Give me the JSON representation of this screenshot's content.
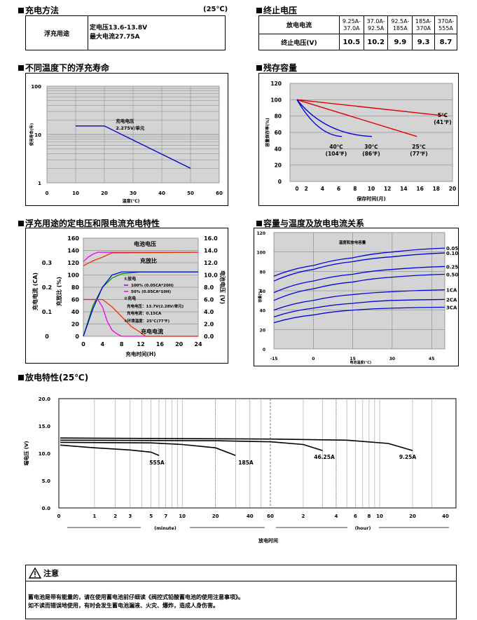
{
  "charge_method": {
    "title": "充电方法",
    "temp": "(25℃)",
    "use_label": "浮充用途",
    "line1": "定电压13.6-13.8V",
    "line2": "最大电流27.75A"
  },
  "cutoff": {
    "title": "终止电压",
    "row1_label": "放电电流",
    "row2_label": "终止电压(V)",
    "currents": [
      "9.25A-\n37.0A",
      "37.0A-\n92.5A",
      "92.5A-\n185A",
      "185A-\n370A",
      "370A-\n555A"
    ],
    "voltages": [
      "10.5",
      "10.2",
      "9.9",
      "9.3",
      "8.7"
    ]
  },
  "titles": {
    "float_life": "不同温度下的浮充寿命",
    "capacity_remaining": "残存容量",
    "charge_char": "浮充用途的定电压和限电流充电特性",
    "temp_capacity": "容量与温度及放电电流关系",
    "discharge": "放电特性(25℃)"
  },
  "notice": {
    "title": "注意",
    "line1": "蓄电池是带有能量的，请在使用蓄电池前仔细读《阀控式铅酸蓄电池的使用注意事项》。",
    "line2": "如不读而错误地使用，有时会发生蓄电池漏液、火灾、爆炸，造成人身伤害。"
  },
  "chart_data": [
    {
      "type": "line",
      "title": "",
      "xlabel": "温度(℃)",
      "ylabel": "使用寿命(年)",
      "yscale": "log",
      "xlim": [
        0,
        60
      ],
      "ylim": [
        1,
        100
      ],
      "xticks": [
        "0",
        "10",
        "20",
        "30",
        "40",
        "50",
        "60"
      ],
      "yticks": [
        "1",
        "10",
        "100"
      ],
      "annotations": [
        "充电电压",
        "2.275V/单元"
      ],
      "series": [
        {
          "x": [
            10,
            20,
            50
          ],
          "y": [
            15,
            15,
            2
          ]
        }
      ],
      "grid": true
    },
    {
      "type": "line",
      "title": "",
      "xlabel": "保存时间(月)",
      "ylabel": "容量保存率(%)",
      "xlim": [
        0,
        20
      ],
      "ylim": [
        0,
        120
      ],
      "xticks": [
        "0",
        "2",
        "4",
        "6",
        "8",
        "10",
        "12",
        "14",
        "16",
        "18",
        "20"
      ],
      "yticks": [
        "0",
        "20",
        "40",
        "60",
        "80",
        "100",
        "120"
      ],
      "series": [
        {
          "name": "5℃\n(41℉)",
          "color": "#e00000",
          "x": [
            0,
            20
          ],
          "y": [
            100,
            80
          ]
        },
        {
          "name": "25℃\n(77℉)",
          "color": "#e00000",
          "x": [
            0,
            16
          ],
          "y": [
            100,
            55
          ]
        },
        {
          "name": "30℃\n(86℉)",
          "color": "#0000dd",
          "x": [
            0,
            3,
            6,
            10
          ],
          "y": [
            100,
            80,
            66,
            55
          ]
        },
        {
          "name": "40℃\n(104℉)",
          "color": "#0000dd",
          "x": [
            0,
            2,
            4,
            6
          ],
          "y": [
            100,
            80,
            65,
            55
          ]
        }
      ],
      "grid": true
    },
    {
      "type": "line",
      "title": "",
      "xlabel": "充电时间(H)",
      "y_left_outer_label": "充电电流 (CA)",
      "y_left_inner_label": "充放比 (%)",
      "y_right_label": "电池电压 (V)",
      "xticks": [
        "0",
        "4",
        "8",
        "12",
        "16",
        "20",
        "24"
      ],
      "y_pct_ticks": [
        "0",
        "20",
        "40",
        "60",
        "80",
        "100",
        "120",
        "140",
        "160"
      ],
      "y_ca_ticks": [
        "0",
        "0.1",
        "0.2",
        "0.3"
      ],
      "y_v_ticks": [
        "0.0",
        "2.0",
        "4.0",
        "6.0",
        "8.0",
        "10.0",
        "12.0",
        "14.0",
        "16.0"
      ],
      "labels": [
        "电池电压",
        "充放比",
        "充电电流"
      ],
      "legend": {
        "discharge": "①放电",
        "d1": "100% (0.05CA*20H)",
        "d2": "50%  (0.05CA*10H)",
        "charge": "②充电",
        "c1": "充电电压：13.7V(2.28V/单元)",
        "c2": "充电电流：0.15CA",
        "env": "③环境温度：25℃(77℉)"
      },
      "series": [
        {
          "name": "电池电压 100%",
          "color": "#ee00ee",
          "x": [
            0,
            1,
            2,
            3,
            4,
            24
          ],
          "y_volt": [
            12.2,
            12.9,
            13.4,
            13.7,
            13.7,
            13.7
          ]
        },
        {
          "name": "电池电压 50%",
          "color": "#ee3300",
          "x": [
            0,
            2,
            4,
            6,
            24
          ],
          "y_volt": [
            11.5,
            12.3,
            12.9,
            13.6,
            13.7
          ]
        },
        {
          "name": "充放比 100%",
          "color": "#009900",
          "x": [
            0,
            2,
            4,
            6,
            8,
            12,
            24
          ],
          "y_pct": [
            0,
            50,
            80,
            95,
            102,
            105,
            105
          ]
        },
        {
          "name": "充放比 50%",
          "color": "#0000dd",
          "x": [
            0,
            2,
            4,
            6,
            8,
            24
          ],
          "y_pct": [
            0,
            45,
            80,
            100,
            105,
            105
          ]
        },
        {
          "name": "充电电流 100%",
          "color": "#ee00ee",
          "x": [
            0,
            3,
            4,
            5,
            6,
            7,
            8,
            24
          ],
          "y_ca": [
            0.15,
            0.15,
            0.12,
            0.06,
            0.025,
            0.01,
            0,
            0
          ]
        },
        {
          "name": "充电电流 50%",
          "color": "#ee3300",
          "x": [
            0,
            4,
            6,
            8,
            10,
            12,
            13,
            24
          ],
          "y_ca": [
            0.15,
            0.15,
            0.12,
            0.08,
            0.04,
            0.015,
            0,
            0
          ]
        }
      ]
    },
    {
      "type": "line",
      "title": "温度和放电容量",
      "xlabel": "电池温度(℃)",
      "ylabel": "容量(%)",
      "xlim": [
        -15,
        50
      ],
      "ylim": [
        0,
        120
      ],
      "xticks": [
        "-15",
        "0",
        "15",
        "30",
        "45"
      ],
      "yticks": [
        "0",
        "20",
        "40",
        "60",
        "80",
        "100",
        "120"
      ],
      "series": [
        {
          "name": "0.05CA",
          "x": [
            -15,
            0,
            15,
            30,
            50
          ],
          "y": [
            75,
            86,
            94,
            100,
            104
          ]
        },
        {
          "name": "0.10CA",
          "x": [
            -15,
            0,
            15,
            30,
            50
          ],
          "y": [
            70,
            82,
            90,
            95,
            99
          ]
        },
        {
          "name": "0.25CA",
          "x": [
            -15,
            0,
            15,
            30,
            50
          ],
          "y": [
            58,
            70,
            77,
            82,
            85
          ]
        },
        {
          "name": "0.50CA",
          "x": [
            -15,
            0,
            15,
            30,
            50
          ],
          "y": [
            50,
            62,
            69,
            74,
            77
          ]
        },
        {
          "name": "1CA",
          "x": [
            -15,
            0,
            15,
            30,
            50
          ],
          "y": [
            40,
            50,
            56,
            59,
            61
          ]
        },
        {
          "name": "2CA",
          "x": [
            -15,
            0,
            15,
            30,
            50
          ],
          "y": [
            33,
            42,
            47,
            50,
            51
          ]
        },
        {
          "name": "3CA",
          "x": [
            -15,
            0,
            15,
            30,
            50
          ],
          "y": [
            27,
            35,
            40,
            42,
            43
          ]
        }
      ],
      "grid": true
    },
    {
      "type": "line",
      "title": "",
      "xlabel": "放电时间",
      "ylabel": "端电压 (V)",
      "ylim": [
        0,
        20
      ],
      "yticks": [
        "0.0",
        "5.0",
        "10.0",
        "15.0",
        "20.0"
      ],
      "x_minute_ticks": [
        "0",
        "1",
        "2",
        "3",
        "5",
        "7",
        "10",
        "20",
        "40",
        "60"
      ],
      "x_hour_ticks": [
        "2",
        "4",
        "6",
        "8",
        "10",
        "20",
        "40"
      ],
      "x_minute_label": "(minute)",
      "x_hour_label": "(hour)",
      "series": [
        {
          "name": "555A",
          "x_min": [
            0,
            1,
            3,
            5,
            6
          ],
          "y": [
            11.5,
            11.0,
            10.6,
            10.2,
            9.6
          ]
        },
        {
          "name": "185A",
          "x_min": [
            0,
            5,
            10,
            20,
            30
          ],
          "y": [
            12.0,
            11.9,
            11.6,
            11.0,
            9.6
          ]
        },
        {
          "name": "46.25A",
          "x_min": [
            0,
            20,
            60,
            120,
            180
          ],
          "y": [
            12.4,
            12.3,
            12.1,
            11.6,
            10.5
          ]
        },
        {
          "name": "9.25A",
          "x_min": [
            0,
            60,
            300,
            720,
            1200
          ],
          "y": [
            12.8,
            12.6,
            12.4,
            11.8,
            10.5
          ]
        }
      ]
    }
  ]
}
